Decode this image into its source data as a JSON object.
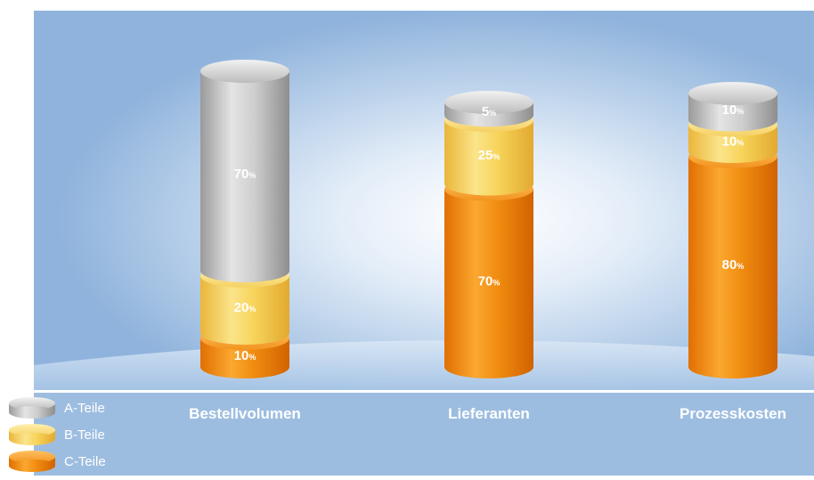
{
  "chart_data": {
    "type": "bar",
    "stacked": true,
    "style": "3d-cylinder",
    "categories": [
      "Bestellvolumen",
      "Lieferanten",
      "Prozesskosten"
    ],
    "series": [
      {
        "name": "A-Teile",
        "values": [
          70,
          5,
          10
        ],
        "labels": [
          "70",
          "5",
          "10"
        ]
      },
      {
        "name": "B-Teile",
        "values": [
          20,
          25,
          10
        ],
        "labels": [
          "20",
          "25",
          "10"
        ]
      },
      {
        "name": "C-Teile",
        "values": [
          10,
          70,
          80
        ],
        "labels": [
          "10",
          "70",
          "80"
        ]
      }
    ],
    "unit_suffix": "%",
    "ylim": [
      0,
      100
    ],
    "grid": false,
    "legend_position": "bottom-left"
  },
  "colors": {
    "A-Teile": "#c8c8c8",
    "B-Teile": "#f7d45a",
    "C-Teile": "#f08c10",
    "background": "#9dbde0",
    "floor": "#bcd3ec",
    "label_text": "#ffffff"
  }
}
